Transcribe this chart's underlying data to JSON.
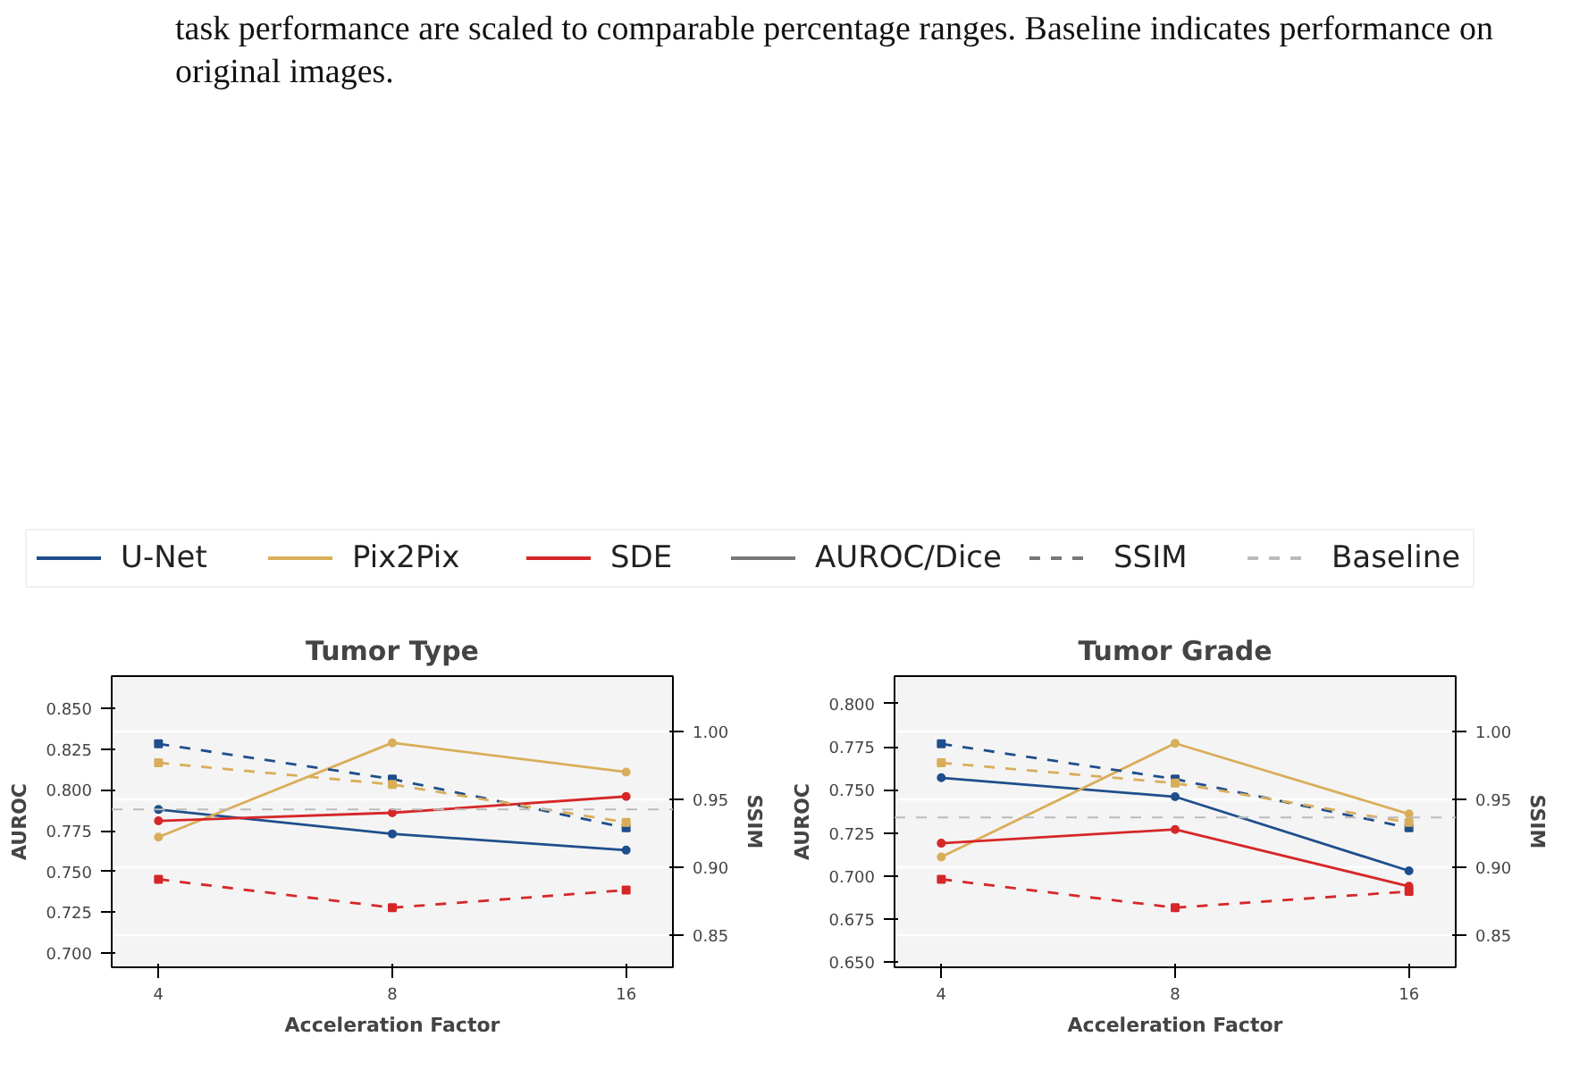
{
  "chart_data": [
    {
      "type": "line",
      "title": "Tumor Type",
      "xlabel": "Acceleration Factor",
      "ylabel": "AUROC",
      "y2label": "SSIM",
      "annotations": [
        "task performance are scaled to comparable percentage ranges. Baseline indicates performance on original images.",
        "AUROC/Dice",
        "SSIM"
      ],
      "categories": [
        "4",
        "8",
        "16"
      ],
      "ylim": [
        0.691,
        0.87
      ],
      "yticks": [
        {
          "value": 0.7,
          "label": "0.700"
        },
        {
          "value": 0.725,
          "label": "0.725"
        },
        {
          "value": 0.75,
          "label": "0.750"
        },
        {
          "value": 0.775,
          "label": "0.775"
        },
        {
          "value": 0.8,
          "label": "0.800"
        },
        {
          "value": 0.825,
          "label": "0.825"
        },
        {
          "value": 0.85,
          "label": "0.850"
        }
      ],
      "y2lim": [
        0.826,
        1.041
      ],
      "y2ticks": [
        {
          "value": 0.85,
          "label": "0.85"
        },
        {
          "value": 0.9,
          "label": "0.90"
        },
        {
          "value": 0.95,
          "label": "0.95"
        },
        {
          "value": 1.0,
          "label": "1.00"
        }
      ],
      "grid": "y",
      "legend": "top",
      "ref_lines": [
        {
          "axis": "y",
          "value": 0.788,
          "label": "Baseline",
          "color": "#bbbbbb",
          "line_style": "dashed"
        }
      ],
      "series": [
        {
          "name": "U-Net",
          "color": "#1f4e8c",
          "values": [
            0.788,
            0.773,
            0.763
          ],
          "marker": "circle",
          "line_style": "solid"
        },
        {
          "name": "Pix2Pix",
          "color": "#d9ae5a",
          "values": [
            0.771,
            0.829,
            0.811
          ],
          "marker": "circle",
          "line_style": "solid"
        },
        {
          "name": "SDE",
          "color": "#d62728",
          "values": [
            0.781,
            0.786,
            0.796
          ],
          "marker": "circle",
          "line_style": "solid"
        },
        {
          "color": "#1f4e8c",
          "values": [
            0.991,
            0.965,
            0.929
          ],
          "axis": "y2",
          "marker": "square",
          "line_style": "dashed"
        },
        {
          "color": "#d9ae5a",
          "values": [
            0.977,
            0.961,
            0.933
          ],
          "axis": "y2",
          "marker": "square",
          "line_style": "dashed"
        },
        {
          "color": "#d62728",
          "values": [
            0.891,
            0.87,
            0.883
          ],
          "axis": "y2",
          "marker": "square",
          "line_style": "dashed"
        }
      ]
    },
    {
      "type": "line",
      "title": "Tumor Grade",
      "xlabel": "Acceleration Factor",
      "ylabel": "AUROC",
      "y2label": "SSIM",
      "categories": [
        "4",
        "8",
        "16"
      ],
      "ylim": [
        0.647,
        0.816
      ],
      "yticks": [
        {
          "value": 0.65,
          "label": "0.650"
        },
        {
          "value": 0.675,
          "label": "0.675"
        },
        {
          "value": 0.7,
          "label": "0.700"
        },
        {
          "value": 0.725,
          "label": "0.725"
        },
        {
          "value": 0.75,
          "label": "0.750"
        },
        {
          "value": 0.775,
          "label": "0.775"
        },
        {
          "value": 0.8,
          "label": "0.800"
        }
      ],
      "y2lim": [
        0.826,
        1.041
      ],
      "y2ticks": [
        {
          "value": 0.85,
          "label": "0.85"
        },
        {
          "value": 0.9,
          "label": "0.90"
        },
        {
          "value": 0.95,
          "label": "0.95"
        },
        {
          "value": 1.0,
          "label": "1.00"
        }
      ],
      "grid": "y",
      "ref_lines": [
        {
          "axis": "y",
          "value": 0.734,
          "color": "#bbbbbb",
          "line_style": "dashed"
        }
      ],
      "series": [
        {
          "color": "#1f4e8c",
          "values": [
            0.757,
            0.746,
            0.703
          ],
          "marker": "circle",
          "line_style": "solid"
        },
        {
          "color": "#d9ae5a",
          "values": [
            0.711,
            0.777,
            0.736
          ],
          "marker": "circle",
          "line_style": "solid"
        },
        {
          "color": "#d62728",
          "values": [
            0.719,
            0.727,
            0.694
          ],
          "marker": "circle",
          "line_style": "solid"
        },
        {
          "color": "#1f4e8c",
          "values": [
            0.991,
            0.965,
            0.929
          ],
          "axis": "y2",
          "marker": "square",
          "line_style": "dashed"
        },
        {
          "color": "#d9ae5a",
          "values": [
            0.977,
            0.962,
            0.933
          ],
          "axis": "y2",
          "marker": "square",
          "line_style": "dashed"
        },
        {
          "color": "#d62728",
          "values": [
            0.891,
            0.87,
            0.882
          ],
          "axis": "y2",
          "marker": "square",
          "line_style": "dashed"
        }
      ]
    }
  ]
}
